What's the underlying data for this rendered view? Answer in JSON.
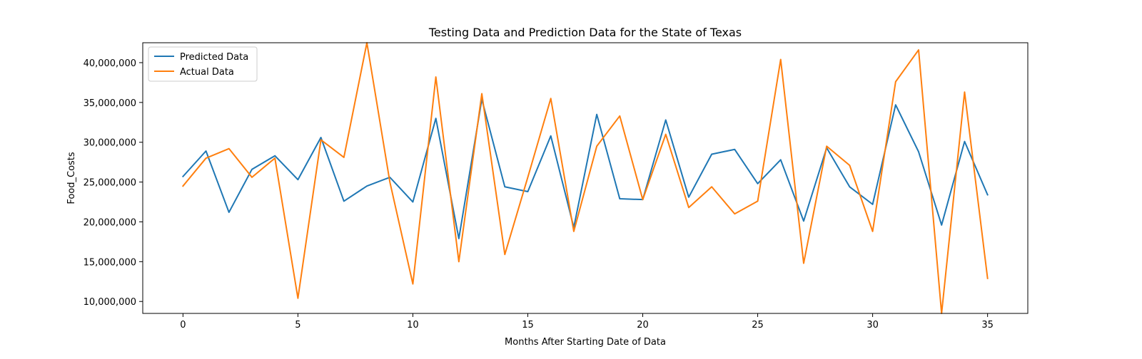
{
  "chart_data": {
    "type": "line",
    "title": "Testing Data and Prediction Data for the State of Texas",
    "xlabel": "Months After Starting Date of Data",
    "ylabel": "Food_Costs",
    "xlim": [
      -1.75,
      36.75
    ],
    "ylim": [
      8500000,
      42500000
    ],
    "x_ticks": [
      0,
      5,
      10,
      15,
      20,
      25,
      30,
      35
    ],
    "x_tick_labels": [
      "0",
      "5",
      "10",
      "15",
      "20",
      "25",
      "30",
      "35"
    ],
    "y_ticks": [
      10000000,
      15000000,
      20000000,
      25000000,
      30000000,
      35000000,
      40000000
    ],
    "y_tick_labels": [
      "10,000,000",
      "15,000,000",
      "20,000,000",
      "25,000,000",
      "30,000,000",
      "35,000,000",
      "40,000,000"
    ],
    "grid": false,
    "legend_position": "top-left",
    "x": [
      0,
      1,
      2,
      3,
      4,
      5,
      6,
      7,
      8,
      9,
      10,
      11,
      12,
      13,
      14,
      15,
      16,
      17,
      18,
      19,
      20,
      21,
      22,
      23,
      24,
      25,
      26,
      27,
      28,
      29,
      30,
      31,
      32,
      33,
      34,
      35
    ],
    "series": [
      {
        "name": "Predicted Data",
        "color": "#1f77b4",
        "values": [
          25700000,
          28900000,
          21200000,
          26600000,
          28300000,
          25300000,
          30600000,
          22600000,
          24500000,
          25600000,
          22500000,
          33000000,
          17900000,
          35400000,
          24400000,
          23800000,
          30800000,
          19300000,
          33500000,
          22900000,
          22800000,
          32800000,
          23100000,
          28500000,
          29100000,
          24800000,
          27800000,
          20100000,
          29300000,
          24400000,
          22200000,
          34700000,
          28800000,
          19600000,
          30100000,
          23400000
        ]
      },
      {
        "name": "Actual Data",
        "color": "#ff7f0e",
        "values": [
          24500000,
          28000000,
          29200000,
          25600000,
          28000000,
          10400000,
          30300000,
          28100000,
          42500000,
          25000000,
          12200000,
          38200000,
          15000000,
          36100000,
          15900000,
          25600000,
          35500000,
          18800000,
          29500000,
          33300000,
          22800000,
          31000000,
          21800000,
          24400000,
          21000000,
          22600000,
          40400000,
          14800000,
          29500000,
          27100000,
          18800000,
          37600000,
          41600000,
          8500000,
          36300000,
          12900000
        ]
      }
    ]
  }
}
